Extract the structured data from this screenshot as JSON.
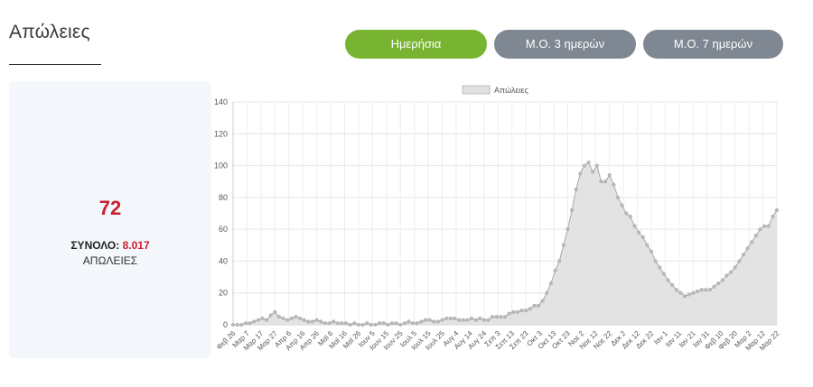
{
  "header": {
    "title": "Απώλειες"
  },
  "buttons": [
    {
      "label": "Ημερήσια",
      "active": true
    },
    {
      "label": "Μ.Ο. 3 ημερών",
      "active": false
    },
    {
      "label": "Μ.Ο. 7 ημερών",
      "active": false
    }
  ],
  "stats": {
    "today_value": "72",
    "total_label": "ΣΥΝΟΛΟ:",
    "total_value": "8.017",
    "unit_label": "ΑΠΩΛΕΙΕΣ"
  },
  "colors": {
    "accent_green": "#78b432",
    "button_gray": "#7f8892",
    "value_red": "#c8202f",
    "area_fill": "#e0e0e0",
    "line": "#a8a8a8"
  },
  "chart_data": {
    "type": "area",
    "title": "",
    "xlabel": "",
    "ylabel": "",
    "ylim": [
      0,
      140
    ],
    "yticks": [
      0,
      20,
      40,
      60,
      80,
      100,
      120,
      140
    ],
    "grid": true,
    "legend_position": "top-center",
    "x_tick_labels": [
      "Φεβ 26",
      "Μαρ 7",
      "Μαρ 17",
      "Μαρ 27",
      "Απρ 6",
      "Απρ 16",
      "Απρ 26",
      "Μαϊ 6",
      "Μαϊ 16",
      "Μαϊ 26",
      "Ιουν 5",
      "Ιουν 15",
      "Ιουν 25",
      "Ιουλ 5",
      "Ιουλ 15",
      "Ιουλ 25",
      "Αυγ 4",
      "Αυγ 14",
      "Αυγ 24",
      "Σεπ 3",
      "Σεπ 13",
      "Σεπ 23",
      "Οκτ 3",
      "Οκτ 13",
      "Οκτ 23",
      "Νοε 2",
      "Νοε 12",
      "Νοε 22",
      "Δεκ 2",
      "Δεκ 12",
      "Δεκ 22",
      "Ιαν 1",
      "Ιαν 11",
      "Ιαν 21",
      "Ιαν 31",
      "Φεβ 10",
      "Φεβ 20",
      "Μαρ 2",
      "Μαρ 12",
      "Μαρ 22"
    ],
    "series": [
      {
        "name": "Απώλειες",
        "sampling": "every 2 days from Φεβ 26",
        "values": [
          0,
          0,
          0,
          1,
          1,
          2,
          3,
          4,
          3,
          6,
          8,
          5,
          4,
          3,
          4,
          5,
          4,
          3,
          2,
          2,
          3,
          2,
          1,
          1,
          2,
          1,
          1,
          1,
          0,
          1,
          0,
          0,
          1,
          0,
          0,
          1,
          1,
          0,
          1,
          1,
          0,
          1,
          2,
          1,
          1,
          2,
          3,
          3,
          2,
          2,
          3,
          4,
          4,
          4,
          3,
          3,
          3,
          4,
          3,
          4,
          3,
          3,
          5,
          5,
          5,
          5,
          7,
          8,
          8,
          9,
          9,
          10,
          12,
          12,
          15,
          20,
          26,
          34,
          40,
          50,
          60,
          72,
          85,
          95,
          100,
          102,
          96,
          100,
          90,
          90,
          94,
          88,
          80,
          75,
          70,
          68,
          62,
          58,
          55,
          50,
          46,
          40,
          36,
          32,
          28,
          25,
          22,
          20,
          18,
          19,
          20,
          21,
          22,
          22,
          22,
          24,
          26,
          28,
          31,
          33,
          36,
          40,
          44,
          48,
          52,
          56,
          60,
          62,
          62,
          68,
          72
        ]
      }
    ]
  }
}
